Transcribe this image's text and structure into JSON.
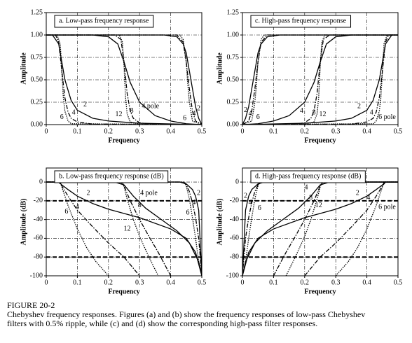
{
  "chart_data": [
    {
      "type": "line",
      "title": "a.  Low-pass frequency response",
      "xlabel": "Frequency",
      "ylabel": "Amplitude",
      "color": "#000000",
      "grid": true,
      "xlim": [
        0,
        0.5
      ],
      "xticks": [
        0,
        0.1,
        0.2,
        0.3,
        0.4,
        0.5
      ],
      "ylim": [
        0,
        1.25
      ],
      "yticks": [
        {
          "value": 0,
          "label": "0.00"
        },
        {
          "value": 0.25,
          "label": "0.25"
        },
        {
          "value": 0.5,
          "label": "0.50"
        },
        {
          "value": 0.75,
          "label": "0.75"
        },
        {
          "value": 1,
          "label": "1.00"
        },
        {
          "value": 1.25,
          "label": "1.25"
        }
      ],
      "series": [
        {
          "name": "2",
          "x": [
            0,
            0.02,
            0.04,
            0.05,
            0.06,
            0.08,
            0.1,
            0.15,
            0.2,
            0.3,
            0.5
          ],
          "values": [
            1,
            1,
            0.9,
            0.7,
            0.5,
            0.27,
            0.16,
            0.07,
            0.04,
            0.015,
            0
          ]
        },
        {
          "name": "4",
          "x": [
            0,
            0.03,
            0.04,
            0.05,
            0.06,
            0.07,
            0.08,
            0.1,
            0.15,
            0.5
          ],
          "values": [
            1,
            1,
            0.92,
            0.6,
            0.3,
            0.14,
            0.07,
            0.03,
            0.005,
            0
          ]
        },
        {
          "name": "6",
          "x": [
            0,
            0.035,
            0.045,
            0.05,
            0.055,
            0.06,
            0.07,
            0.08,
            0.5
          ],
          "values": [
            1,
            1,
            0.9,
            0.6,
            0.3,
            0.15,
            0.04,
            0.01,
            0
          ]
        },
        {
          "name": "4 pole",
          "x": [
            0,
            0.15,
            0.2,
            0.23,
            0.25,
            0.27,
            0.3,
            0.35,
            0.4,
            0.45,
            0.5
          ],
          "values": [
            1,
            1,
            0.98,
            0.9,
            0.7,
            0.47,
            0.25,
            0.1,
            0.04,
            0.01,
            0
          ]
        },
        {
          "name": "8",
          "x": [
            0,
            0.22,
            0.24,
            0.25,
            0.26,
            0.27,
            0.28,
            0.3,
            0.35,
            0.5
          ],
          "values": [
            1,
            1,
            0.95,
            0.7,
            0.35,
            0.15,
            0.07,
            0.02,
            0,
            0
          ]
        },
        {
          "name": "12",
          "x": [
            0,
            0.235,
            0.245,
            0.25,
            0.255,
            0.26,
            0.27,
            0.3,
            0.5
          ],
          "values": [
            1,
            1,
            0.92,
            0.65,
            0.3,
            0.12,
            0.03,
            0,
            0
          ]
        },
        {
          "name": "2",
          "x": [
            0,
            0.38,
            0.42,
            0.44,
            0.45,
            0.46,
            0.47,
            0.48,
            0.49,
            0.5
          ],
          "values": [
            1,
            1,
            0.98,
            0.9,
            0.8,
            0.6,
            0.4,
            0.2,
            0.07,
            0
          ]
        },
        {
          "name": "4",
          "x": [
            0,
            0.42,
            0.44,
            0.45,
            0.46,
            0.47,
            0.48,
            0.5
          ],
          "values": [
            1,
            1,
            0.92,
            0.7,
            0.4,
            0.15,
            0.04,
            0
          ]
        },
        {
          "name": "6",
          "x": [
            0,
            0.43,
            0.44,
            0.45,
            0.455,
            0.46,
            0.47,
            0.5
          ],
          "values": [
            1,
            1,
            0.95,
            0.7,
            0.45,
            0.25,
            0.04,
            0
          ]
        }
      ]
    },
    {
      "type": "line",
      "title": "b.  Low-pass frequency response (dB)",
      "xlabel": "Frequency",
      "ylabel": "Amplitude (dB)",
      "color": "#000000",
      "grid": true,
      "xlim": [
        0,
        0.5
      ],
      "xticks": [
        0,
        0.1,
        0.2,
        0.3,
        0.4,
        0.5
      ],
      "ylim": [
        -100,
        15
      ],
      "yticks": [
        0,
        -20,
        -40,
        -60,
        -80,
        -100
      ],
      "reference_lines": [
        -20,
        -80
      ],
      "series": [
        {
          "name": "2",
          "x": [
            0,
            0.04,
            0.05,
            0.07,
            0.1,
            0.15,
            0.2,
            0.3,
            0.4,
            0.45,
            0.48,
            0.5
          ],
          "values": [
            0,
            0,
            -3,
            -8,
            -15,
            -23,
            -29,
            -38,
            -50,
            -60,
            -75,
            -100
          ]
        },
        {
          "name": "4",
          "x": [
            0,
            0.04,
            0.05,
            0.07,
            0.1,
            0.15,
            0.2,
            0.25,
            0.3
          ],
          "values": [
            0,
            0,
            -4,
            -15,
            -30,
            -48,
            -65,
            -80,
            -100
          ]
        },
        {
          "name": "6",
          "x": [
            0,
            0.045,
            0.05,
            0.07,
            0.1,
            0.13,
            0.16,
            0.2
          ],
          "values": [
            0,
            0,
            -5,
            -25,
            -50,
            -70,
            -85,
            -100
          ]
        },
        {
          "name": "4 pole",
          "x": [
            0,
            0.22,
            0.25,
            0.28,
            0.32,
            0.37,
            0.42,
            0.46,
            0.49,
            0.5
          ],
          "values": [
            0,
            0,
            -3,
            -15,
            -28,
            -40,
            -52,
            -65,
            -85,
            -100
          ]
        },
        {
          "name": "8",
          "x": [
            0,
            0.24,
            0.25,
            0.27,
            0.3,
            0.33,
            0.36,
            0.4
          ],
          "values": [
            0,
            0,
            -4,
            -20,
            -40,
            -58,
            -75,
            -100
          ]
        },
        {
          "name": "12",
          "x": [
            0,
            0.245,
            0.25,
            0.26,
            0.28,
            0.3,
            0.33,
            0.36
          ],
          "values": [
            0,
            0,
            -5,
            -18,
            -40,
            -58,
            -80,
            -100
          ]
        },
        {
          "name": "2",
          "x": [
            0,
            0.43,
            0.45,
            0.47,
            0.48,
            0.49,
            0.5
          ],
          "values": [
            0,
            0,
            -2,
            -8,
            -15,
            -30,
            -100
          ]
        },
        {
          "name": "4",
          "x": [
            0,
            0.44,
            0.45,
            0.46,
            0.47,
            0.48,
            0.49,
            0.5
          ],
          "values": [
            0,
            0,
            -3,
            -10,
            -22,
            -38,
            -60,
            -100
          ]
        },
        {
          "name": "6",
          "x": [
            0,
            0.445,
            0.45,
            0.46,
            0.47,
            0.48,
            0.49,
            0.5
          ],
          "values": [
            0,
            0,
            -4,
            -18,
            -38,
            -60,
            -85,
            -100
          ]
        }
      ]
    },
    {
      "type": "line",
      "title": "c.  High-pass frequency response",
      "xlabel": "Frequency",
      "ylabel": "Amplitude",
      "color": "#000000",
      "grid": true,
      "xlim": [
        0,
        0.5
      ],
      "xticks": [
        0,
        0.1,
        0.2,
        0.3,
        0.4,
        0.5
      ],
      "ylim": [
        0,
        1.25
      ],
      "yticks": [
        {
          "value": 0,
          "label": "0.00"
        },
        {
          "value": 0.25,
          "label": "0.25"
        },
        {
          "value": 0.5,
          "label": "0.50"
        },
        {
          "value": 0.75,
          "label": "0.75"
        },
        {
          "value": 1,
          "label": "1.00"
        },
        {
          "value": 1.25,
          "label": "1.25"
        }
      ],
      "series": [
        {
          "name": "2",
          "x": [
            0,
            0.01,
            0.02,
            0.03,
            0.04,
            0.05,
            0.06,
            0.08,
            0.12,
            0.5
          ],
          "values": [
            0,
            0.07,
            0.2,
            0.4,
            0.6,
            0.8,
            0.9,
            0.98,
            1,
            1
          ]
        },
        {
          "name": "4",
          "x": [
            0,
            0.02,
            0.03,
            0.04,
            0.05,
            0.06,
            0.08,
            0.5
          ],
          "values": [
            0,
            0.04,
            0.15,
            0.4,
            0.7,
            0.92,
            1,
            1
          ]
        },
        {
          "name": "6",
          "x": [
            0,
            0.03,
            0.04,
            0.045,
            0.05,
            0.06,
            0.07,
            0.5
          ],
          "values": [
            0,
            0.04,
            0.25,
            0.45,
            0.7,
            0.95,
            1,
            1
          ]
        },
        {
          "name": "4",
          "x": [
            0,
            0.05,
            0.1,
            0.15,
            0.2,
            0.23,
            0.25,
            0.27,
            0.3,
            0.35,
            0.5
          ],
          "values": [
            0,
            0.01,
            0.04,
            0.1,
            0.25,
            0.47,
            0.7,
            0.9,
            0.98,
            1,
            1
          ]
        },
        {
          "name": "8",
          "x": [
            0,
            0.15,
            0.2,
            0.22,
            0.23,
            0.24,
            0.25,
            0.26,
            0.28,
            0.5
          ],
          "values": [
            0,
            0,
            0.02,
            0.07,
            0.15,
            0.35,
            0.7,
            0.95,
            1,
            1
          ]
        },
        {
          "name": "12",
          "x": [
            0,
            0.2,
            0.23,
            0.24,
            0.245,
            0.25,
            0.255,
            0.265,
            0.5
          ],
          "values": [
            0,
            0,
            0.03,
            0.12,
            0.3,
            0.65,
            0.92,
            1,
            1
          ]
        },
        {
          "name": "2",
          "x": [
            0,
            0.2,
            0.3,
            0.35,
            0.4,
            0.42,
            0.44,
            0.45,
            0.46,
            0.48,
            0.5
          ],
          "values": [
            0,
            0.015,
            0.04,
            0.07,
            0.16,
            0.27,
            0.5,
            0.7,
            0.9,
            1,
            1
          ]
        },
        {
          "name": "4",
          "x": [
            0,
            0.35,
            0.4,
            0.42,
            0.43,
            0.44,
            0.45,
            0.46,
            0.47,
            0.5
          ],
          "values": [
            0,
            0.005,
            0.03,
            0.07,
            0.14,
            0.3,
            0.6,
            0.92,
            1,
            1
          ]
        },
        {
          "name": "6 pole",
          "x": [
            0,
            0.42,
            0.43,
            0.44,
            0.445,
            0.45,
            0.455,
            0.465,
            0.5
          ],
          "values": [
            0,
            0.01,
            0.04,
            0.15,
            0.3,
            0.6,
            0.9,
            1,
            1
          ]
        }
      ]
    },
    {
      "type": "line",
      "title": "d.  High-pass frequency response (dB)",
      "xlabel": "Frequency",
      "ylabel": "Amplitude (dB)",
      "color": "#000000",
      "grid": true,
      "xlim": [
        0,
        0.5
      ],
      "xticks": [
        0,
        0.1,
        0.2,
        0.3,
        0.4,
        0.5
      ],
      "ylim": [
        -100,
        15
      ],
      "yticks": [
        0,
        -20,
        -40,
        -60,
        -80,
        -100
      ],
      "reference_lines": [
        -20,
        -80
      ],
      "series": [
        {
          "name": "2",
          "x": [
            0,
            0.01,
            0.02,
            0.03,
            0.05,
            0.07,
            0.5
          ],
          "values": [
            -100,
            -30,
            -15,
            -8,
            -2,
            0,
            0
          ]
        },
        {
          "name": "4",
          "x": [
            0,
            0.01,
            0.02,
            0.03,
            0.04,
            0.05,
            0.06,
            0.5
          ],
          "values": [
            -100,
            -60,
            -38,
            -22,
            -10,
            -3,
            0,
            0
          ]
        },
        {
          "name": "6",
          "x": [
            0,
            0.01,
            0.02,
            0.03,
            0.04,
            0.05,
            0.055,
            0.5
          ],
          "values": [
            -100,
            -85,
            -60,
            -38,
            -18,
            -4,
            0,
            0
          ]
        },
        {
          "name": "4",
          "x": [
            0,
            0.01,
            0.04,
            0.08,
            0.13,
            0.18,
            0.22,
            0.25,
            0.28,
            0.5
          ],
          "values": [
            -100,
            -85,
            -65,
            -52,
            -40,
            -28,
            -15,
            -3,
            0,
            0
          ]
        },
        {
          "name": "8",
          "x": [
            0.1,
            0.14,
            0.17,
            0.2,
            0.23,
            0.25,
            0.26,
            0.5
          ],
          "values": [
            -100,
            -75,
            -58,
            -40,
            -20,
            -4,
            0,
            0
          ]
        },
        {
          "name": "12",
          "x": [
            0.14,
            0.17,
            0.2,
            0.22,
            0.24,
            0.25,
            0.255,
            0.5
          ],
          "values": [
            -100,
            -80,
            -58,
            -40,
            -18,
            -5,
            0,
            0
          ]
        },
        {
          "name": "2",
          "x": [
            0,
            0.02,
            0.05,
            0.1,
            0.2,
            0.3,
            0.35,
            0.4,
            0.43,
            0.45,
            0.46,
            0.5
          ],
          "values": [
            -100,
            -75,
            -60,
            -50,
            -38,
            -29,
            -23,
            -15,
            -8,
            -3,
            0,
            0
          ]
        },
        {
          "name": "4",
          "x": [
            0.2,
            0.25,
            0.3,
            0.35,
            0.4,
            0.43,
            0.45,
            0.46,
            0.5
          ],
          "values": [
            -100,
            -80,
            -65,
            -48,
            -30,
            -15,
            -4,
            0,
            0
          ]
        },
        {
          "name": "6 pole",
          "x": [
            0.3,
            0.34,
            0.37,
            0.4,
            0.43,
            0.45,
            0.455,
            0.5
          ],
          "values": [
            -100,
            -85,
            -70,
            -50,
            -25,
            -5,
            0,
            0
          ]
        }
      ]
    }
  ],
  "caption": {
    "label": "FIGURE 20-2",
    "text": "Chebyshev frequency responses.  Figures (a) and (b) show the frequency responses of low-pass Chebyshev filters with 0.5% ripple, while (c) and (d) show the corresponding high-pass filter responses."
  }
}
